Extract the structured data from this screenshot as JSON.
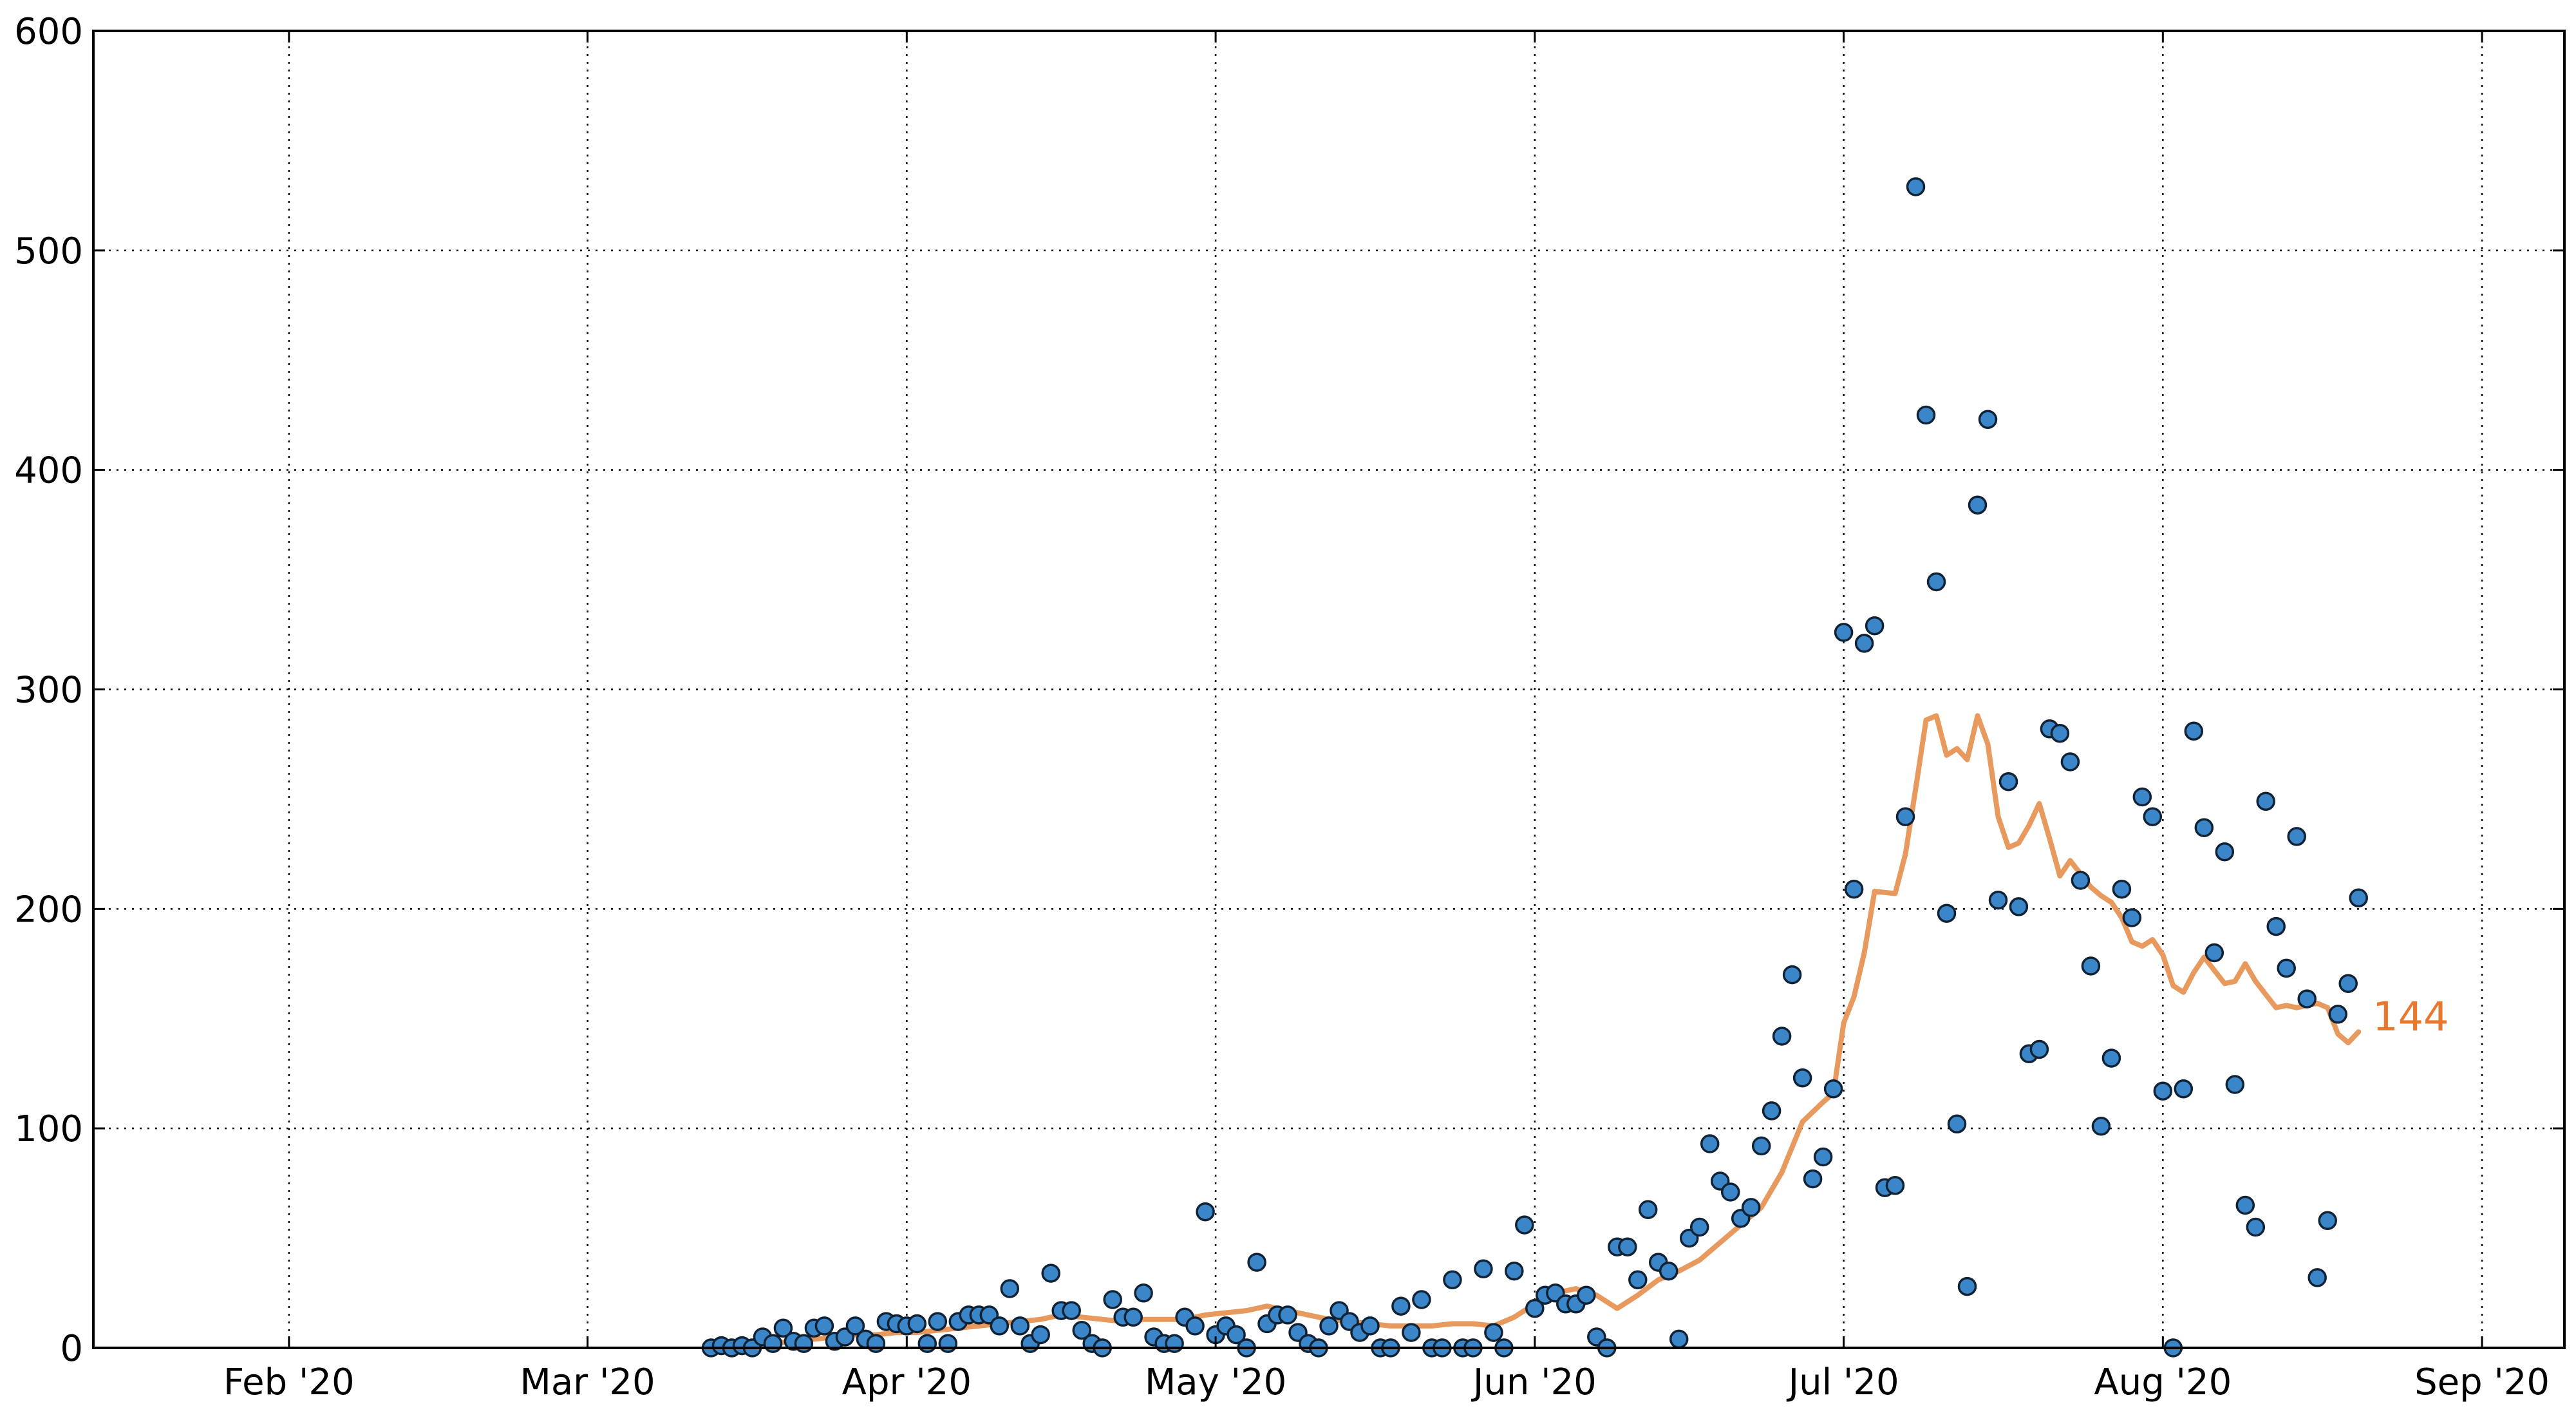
{
  "chart_data": {
    "type": "scatter",
    "xlim": [
      "2020-01-13",
      "2020-09-09"
    ],
    "ylim": [
      0,
      600
    ],
    "yticks": [
      0,
      100,
      200,
      300,
      400,
      500,
      600
    ],
    "xticks": [
      {
        "date": "2020-02-01",
        "label": "Feb '20"
      },
      {
        "date": "2020-03-01",
        "label": "Mar '20"
      },
      {
        "date": "2020-04-01",
        "label": "Apr '20"
      },
      {
        "date": "2020-05-01",
        "label": "May '20"
      },
      {
        "date": "2020-06-01",
        "label": "Jun '20"
      },
      {
        "date": "2020-07-01",
        "label": "Jul '20"
      },
      {
        "date": "2020-08-01",
        "label": "Aug '20"
      },
      {
        "date": "2020-09-01",
        "label": "Sep '20"
      }
    ],
    "grid": true,
    "series": [
      {
        "kind": "scatter",
        "color": "#3a86c8",
        "points": [
          [
            "2020-03-13",
            0
          ],
          [
            "2020-03-14",
            1
          ],
          [
            "2020-03-15",
            0
          ],
          [
            "2020-03-16",
            1
          ],
          [
            "2020-03-17",
            0
          ],
          [
            "2020-03-18",
            5
          ],
          [
            "2020-03-19",
            2
          ],
          [
            "2020-03-20",
            9
          ],
          [
            "2020-03-21",
            3
          ],
          [
            "2020-03-22",
            2
          ],
          [
            "2020-03-23",
            9
          ],
          [
            "2020-03-24",
            10
          ],
          [
            "2020-03-25",
            3
          ],
          [
            "2020-03-26",
            5
          ],
          [
            "2020-03-27",
            10
          ],
          [
            "2020-03-28",
            4
          ],
          [
            "2020-03-29",
            2
          ],
          [
            "2020-03-30",
            12
          ],
          [
            "2020-03-31",
            11
          ],
          [
            "2020-04-01",
            10
          ],
          [
            "2020-04-02",
            11
          ],
          [
            "2020-04-03",
            2
          ],
          [
            "2020-04-04",
            12
          ],
          [
            "2020-04-05",
            2
          ],
          [
            "2020-04-06",
            12
          ],
          [
            "2020-04-07",
            15
          ],
          [
            "2020-04-08",
            15
          ],
          [
            "2020-04-09",
            15
          ],
          [
            "2020-04-10",
            10
          ],
          [
            "2020-04-11",
            27
          ],
          [
            "2020-04-12",
            10
          ],
          [
            "2020-04-13",
            2
          ],
          [
            "2020-04-14",
            6
          ],
          [
            "2020-04-15",
            34
          ],
          [
            "2020-04-16",
            17
          ],
          [
            "2020-04-17",
            17
          ],
          [
            "2020-04-18",
            8
          ],
          [
            "2020-04-19",
            2
          ],
          [
            "2020-04-20",
            0
          ],
          [
            "2020-04-21",
            22
          ],
          [
            "2020-04-22",
            14
          ],
          [
            "2020-04-23",
            14
          ],
          [
            "2020-04-24",
            25
          ],
          [
            "2020-04-25",
            5
          ],
          [
            "2020-04-26",
            2
          ],
          [
            "2020-04-27",
            2
          ],
          [
            "2020-04-28",
            14
          ],
          [
            "2020-04-29",
            10
          ],
          [
            "2020-04-30",
            62
          ],
          [
            "2020-05-01",
            6
          ],
          [
            "2020-05-02",
            10
          ],
          [
            "2020-05-03",
            6
          ],
          [
            "2020-05-04",
            0
          ],
          [
            "2020-05-05",
            39
          ],
          [
            "2020-05-06",
            11
          ],
          [
            "2020-05-07",
            15
          ],
          [
            "2020-05-08",
            15
          ],
          [
            "2020-05-09",
            7
          ],
          [
            "2020-05-10",
            2
          ],
          [
            "2020-05-11",
            0
          ],
          [
            "2020-05-12",
            10
          ],
          [
            "2020-05-13",
            17
          ],
          [
            "2020-05-14",
            12
          ],
          [
            "2020-05-15",
            7
          ],
          [
            "2020-05-16",
            10
          ],
          [
            "2020-05-17",
            0
          ],
          [
            "2020-05-18",
            0
          ],
          [
            "2020-05-19",
            19
          ],
          [
            "2020-05-20",
            7
          ],
          [
            "2020-05-21",
            22
          ],
          [
            "2020-05-22",
            0
          ],
          [
            "2020-05-23",
            0
          ],
          [
            "2020-05-24",
            31
          ],
          [
            "2020-05-25",
            0
          ],
          [
            "2020-05-26",
            0
          ],
          [
            "2020-05-27",
            36
          ],
          [
            "2020-05-28",
            7
          ],
          [
            "2020-05-29",
            0
          ],
          [
            "2020-05-30",
            35
          ],
          [
            "2020-05-31",
            56
          ],
          [
            "2020-06-01",
            18
          ],
          [
            "2020-06-02",
            24
          ],
          [
            "2020-06-03",
            25
          ],
          [
            "2020-06-04",
            20
          ],
          [
            "2020-06-05",
            20
          ],
          [
            "2020-06-06",
            24
          ],
          [
            "2020-06-07",
            5
          ],
          [
            "2020-06-08",
            0
          ],
          [
            "2020-06-09",
            46
          ],
          [
            "2020-06-10",
            46
          ],
          [
            "2020-06-11",
            31
          ],
          [
            "2020-06-12",
            63
          ],
          [
            "2020-06-13",
            39
          ],
          [
            "2020-06-14",
            35
          ],
          [
            "2020-06-15",
            4
          ],
          [
            "2020-06-16",
            50
          ],
          [
            "2020-06-17",
            55
          ],
          [
            "2020-06-18",
            93
          ],
          [
            "2020-06-19",
            76
          ],
          [
            "2020-06-20",
            71
          ],
          [
            "2020-06-21",
            59
          ],
          [
            "2020-06-22",
            64
          ],
          [
            "2020-06-23",
            92
          ],
          [
            "2020-06-24",
            108
          ],
          [
            "2020-06-25",
            142
          ],
          [
            "2020-06-26",
            170
          ],
          [
            "2020-06-27",
            123
          ],
          [
            "2020-06-28",
            77
          ],
          [
            "2020-06-29",
            87
          ],
          [
            "2020-06-30",
            118
          ],
          [
            "2020-07-01",
            326
          ],
          [
            "2020-07-02",
            209
          ],
          [
            "2020-07-03",
            321
          ],
          [
            "2020-07-04",
            329
          ],
          [
            "2020-07-05",
            73
          ],
          [
            "2020-07-06",
            74
          ],
          [
            "2020-07-07",
            242
          ],
          [
            "2020-07-08",
            529
          ],
          [
            "2020-07-09",
            425
          ],
          [
            "2020-07-10",
            349
          ],
          [
            "2020-07-11",
            198
          ],
          [
            "2020-07-12",
            102
          ],
          [
            "2020-07-13",
            28
          ],
          [
            "2020-07-14",
            384
          ],
          [
            "2020-07-15",
            423
          ],
          [
            "2020-07-16",
            204
          ],
          [
            "2020-07-17",
            258
          ],
          [
            "2020-07-18",
            201
          ],
          [
            "2020-07-19",
            134
          ],
          [
            "2020-07-20",
            136
          ],
          [
            "2020-07-21",
            282
          ],
          [
            "2020-07-22",
            280
          ],
          [
            "2020-07-23",
            267
          ],
          [
            "2020-07-24",
            213
          ],
          [
            "2020-07-25",
            174
          ],
          [
            "2020-07-26",
            101
          ],
          [
            "2020-07-27",
            132
          ],
          [
            "2020-07-28",
            209
          ],
          [
            "2020-07-29",
            196
          ],
          [
            "2020-07-30",
            251
          ],
          [
            "2020-07-31",
            242
          ],
          [
            "2020-08-01",
            117
          ],
          [
            "2020-08-02",
            0
          ],
          [
            "2020-08-03",
            118
          ],
          [
            "2020-08-04",
            281
          ],
          [
            "2020-08-05",
            237
          ],
          [
            "2020-08-06",
            180
          ],
          [
            "2020-08-07",
            226
          ],
          [
            "2020-08-08",
            120
          ],
          [
            "2020-08-09",
            65
          ],
          [
            "2020-08-10",
            55
          ],
          [
            "2020-08-11",
            249
          ],
          [
            "2020-08-12",
            192
          ],
          [
            "2020-08-13",
            173
          ],
          [
            "2020-08-14",
            233
          ],
          [
            "2020-08-15",
            159
          ],
          [
            "2020-08-16",
            32
          ],
          [
            "2020-08-17",
            58
          ],
          [
            "2020-08-18",
            152
          ],
          [
            "2020-08-19",
            166
          ],
          [
            "2020-08-20",
            205
          ]
        ]
      },
      {
        "kind": "line",
        "color": "#e8995e",
        "points": [
          [
            "2020-03-19",
            2
          ],
          [
            "2020-03-21",
            3
          ],
          [
            "2020-03-23",
            4
          ],
          [
            "2020-03-25",
            5
          ],
          [
            "2020-03-27",
            6
          ],
          [
            "2020-03-29",
            6
          ],
          [
            "2020-03-31",
            7
          ],
          [
            "2020-04-02",
            7
          ],
          [
            "2020-04-04",
            8
          ],
          [
            "2020-04-06",
            9
          ],
          [
            "2020-04-08",
            10
          ],
          [
            "2020-04-10",
            11
          ],
          [
            "2020-04-12",
            12
          ],
          [
            "2020-04-14",
            13
          ],
          [
            "2020-04-16",
            15
          ],
          [
            "2020-04-18",
            14
          ],
          [
            "2020-04-20",
            13
          ],
          [
            "2020-04-22",
            12
          ],
          [
            "2020-04-24",
            13
          ],
          [
            "2020-04-26",
            13
          ],
          [
            "2020-04-28",
            13
          ],
          [
            "2020-04-30",
            15
          ],
          [
            "2020-05-02",
            16
          ],
          [
            "2020-05-04",
            17
          ],
          [
            "2020-05-06",
            19
          ],
          [
            "2020-05-08",
            17
          ],
          [
            "2020-05-10",
            15
          ],
          [
            "2020-05-12",
            13
          ],
          [
            "2020-05-14",
            12
          ],
          [
            "2020-05-16",
            11
          ],
          [
            "2020-05-18",
            10
          ],
          [
            "2020-05-20",
            10
          ],
          [
            "2020-05-22",
            10
          ],
          [
            "2020-05-24",
            11
          ],
          [
            "2020-05-26",
            11
          ],
          [
            "2020-05-28",
            10
          ],
          [
            "2020-05-30",
            14
          ],
          [
            "2020-06-01",
            20
          ],
          [
            "2020-06-03",
            25
          ],
          [
            "2020-06-05",
            27
          ],
          [
            "2020-06-07",
            24
          ],
          [
            "2020-06-09",
            18
          ],
          [
            "2020-06-11",
            24
          ],
          [
            "2020-06-13",
            31
          ],
          [
            "2020-06-15",
            35
          ],
          [
            "2020-06-17",
            40
          ],
          [
            "2020-06-19",
            48
          ],
          [
            "2020-06-21",
            56
          ],
          [
            "2020-06-23",
            64
          ],
          [
            "2020-06-25",
            80
          ],
          [
            "2020-06-27",
            103
          ],
          [
            "2020-06-29",
            112
          ],
          [
            "2020-06-30",
            116
          ],
          [
            "2020-07-01",
            148
          ],
          [
            "2020-07-02",
            160
          ],
          [
            "2020-07-03",
            180
          ],
          [
            "2020-07-04",
            208
          ],
          [
            "2020-07-06",
            207
          ],
          [
            "2020-07-07",
            225
          ],
          [
            "2020-07-08",
            255
          ],
          [
            "2020-07-09",
            286
          ],
          [
            "2020-07-10",
            288
          ],
          [
            "2020-07-11",
            270
          ],
          [
            "2020-07-12",
            273
          ],
          [
            "2020-07-13",
            268
          ],
          [
            "2020-07-14",
            288
          ],
          [
            "2020-07-15",
            275
          ],
          [
            "2020-07-16",
            242
          ],
          [
            "2020-07-17",
            228
          ],
          [
            "2020-07-18",
            230
          ],
          [
            "2020-07-19",
            238
          ],
          [
            "2020-07-20",
            248
          ],
          [
            "2020-07-21",
            232
          ],
          [
            "2020-07-22",
            215
          ],
          [
            "2020-07-23",
            222
          ],
          [
            "2020-07-24",
            216
          ],
          [
            "2020-07-25",
            210
          ],
          [
            "2020-07-26",
            206
          ],
          [
            "2020-07-27",
            203
          ],
          [
            "2020-07-28",
            196
          ],
          [
            "2020-07-29",
            185
          ],
          [
            "2020-07-30",
            183
          ],
          [
            "2020-07-31",
            186
          ],
          [
            "2020-08-01",
            179
          ],
          [
            "2020-08-02",
            165
          ],
          [
            "2020-08-03",
            162
          ],
          [
            "2020-08-04",
            171
          ],
          [
            "2020-08-05",
            178
          ],
          [
            "2020-08-06",
            172
          ],
          [
            "2020-08-07",
            166
          ],
          [
            "2020-08-08",
            167
          ],
          [
            "2020-08-09",
            175
          ],
          [
            "2020-08-10",
            167
          ],
          [
            "2020-08-11",
            161
          ],
          [
            "2020-08-12",
            155
          ],
          [
            "2020-08-13",
            156
          ],
          [
            "2020-08-14",
            155
          ],
          [
            "2020-08-15",
            156
          ],
          [
            "2020-08-16",
            157
          ],
          [
            "2020-08-17",
            155
          ],
          [
            "2020-08-18",
            143
          ],
          [
            "2020-08-19",
            139
          ],
          [
            "2020-08-20",
            144
          ]
        ],
        "end_label": "144",
        "end_label_color": "#e9782f"
      }
    ]
  }
}
